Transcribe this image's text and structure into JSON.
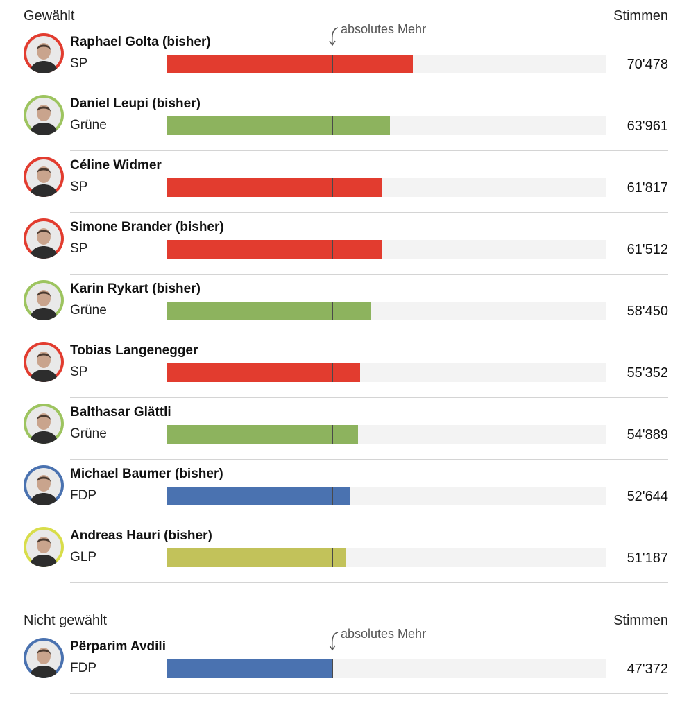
{
  "chart_data": {
    "type": "bar",
    "orientation": "horizontal",
    "value_label": "Stimmen",
    "threshold_label": "absolutes Mehr",
    "threshold_value": 47372,
    "xlim": [
      0,
      126000
    ],
    "sections": [
      {
        "title": "Gewählt",
        "votes_label": "Stimmen",
        "candidates": [
          {
            "name": "Raphael Golta (bisher)",
            "party": "SP",
            "votes": 70478,
            "votes_label": "70'478",
            "color": "#e23c2f",
            "avatar_color": "#e23c2f"
          },
          {
            "name": "Daniel Leupi (bisher)",
            "party": "Grüne",
            "votes": 63961,
            "votes_label": "63'961",
            "color": "#8db35e",
            "avatar_color": "#9dc45f"
          },
          {
            "name": "Céline Widmer",
            "party": "SP",
            "votes": 61817,
            "votes_label": "61'817",
            "color": "#e23c2f",
            "avatar_color": "#e23c2f"
          },
          {
            "name": "Simone Brander (bisher)",
            "party": "SP",
            "votes": 61512,
            "votes_label": "61'512",
            "color": "#e23c2f",
            "avatar_color": "#e23c2f"
          },
          {
            "name": "Karin Rykart (bisher)",
            "party": "Grüne",
            "votes": 58450,
            "votes_label": "58'450",
            "color": "#8db35e",
            "avatar_color": "#9dc45f"
          },
          {
            "name": "Tobias Langenegger",
            "party": "SP",
            "votes": 55352,
            "votes_label": "55'352",
            "color": "#e23c2f",
            "avatar_color": "#e23c2f"
          },
          {
            "name": "Balthasar Glättli",
            "party": "Grüne",
            "votes": 54889,
            "votes_label": "54'889",
            "color": "#8db35e",
            "avatar_color": "#9dc45f"
          },
          {
            "name": "Michael Baumer (bisher)",
            "party": "FDP",
            "votes": 52644,
            "votes_label": "52'644",
            "color": "#4a72b0",
            "avatar_color": "#4a72b0"
          },
          {
            "name": "Andreas Hauri (bisher)",
            "party": "GLP",
            "votes": 51187,
            "votes_label": "51'187",
            "color": "#c2c25a",
            "avatar_color": "#d8dd4a"
          }
        ]
      },
      {
        "title": "Nicht gewählt",
        "votes_label": "Stimmen",
        "candidates": [
          {
            "name": "Përparim Avdili",
            "party": "FDP",
            "votes": 47372,
            "votes_label": "47'372",
            "color": "#4a72b0",
            "avatar_color": "#4a72b0"
          }
        ]
      }
    ]
  }
}
